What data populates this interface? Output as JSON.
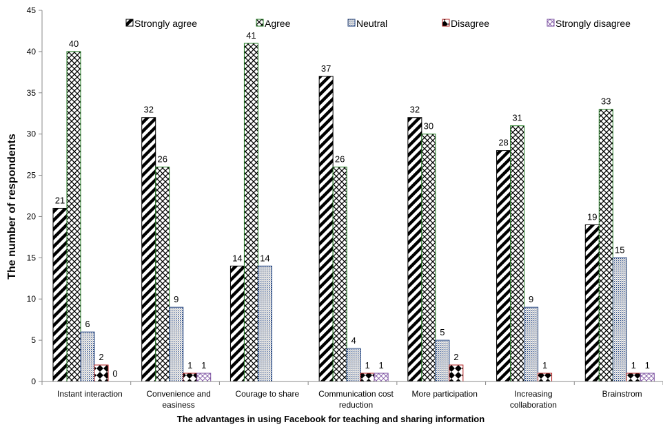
{
  "chart_data": {
    "type": "bar",
    "title": "",
    "xlabel": "The advantages in using Facebook for teaching and sharing information",
    "ylabel": "The number of respondents",
    "ylim": [
      0,
      45
    ],
    "ytick_step": 5,
    "grid": false,
    "legend_position": "top",
    "categories": [
      [
        "Instant interaction"
      ],
      [
        "Convenience and",
        "easiness"
      ],
      [
        "Courage to share"
      ],
      [
        "Communication cost",
        "reduction"
      ],
      [
        "More participation"
      ],
      [
        "Increasing",
        "collaboration"
      ],
      [
        "Brainstrom"
      ]
    ],
    "series": [
      {
        "name": "Strongly agree",
        "pattern": "diag-hatch",
        "color": "#000000",
        "border": "#000000",
        "values": [
          21,
          32,
          14,
          37,
          32,
          28,
          19
        ],
        "labels": [
          "21",
          "32",
          "14",
          "37",
          "32",
          "28",
          "19"
        ]
      },
      {
        "name": "Agree",
        "pattern": "crosshatch",
        "color": "#000000",
        "border": "#1f7a1f",
        "values": [
          40,
          26,
          41,
          26,
          30,
          31,
          33
        ],
        "labels": [
          "40",
          "26",
          "41",
          "26",
          "30",
          "31",
          "33"
        ]
      },
      {
        "name": "Neutral",
        "pattern": "dots",
        "color": "#1f3f7a",
        "border": "#1f3f7a",
        "values": [
          6,
          9,
          14,
          4,
          5,
          9,
          15
        ],
        "labels": [
          "6",
          "9",
          "14",
          "4",
          "5",
          "9",
          "15"
        ]
      },
      {
        "name": "Disagree",
        "pattern": "checker",
        "color": "#000000",
        "border": "#b02020",
        "values": [
          2,
          1,
          0,
          1,
          2,
          1,
          1
        ],
        "labels": [
          "2",
          "1",
          "",
          "1",
          "2",
          "1",
          "1"
        ]
      },
      {
        "name": "Strongly disagree",
        "pattern": "light-crosshatch",
        "color": "#7a4fa0",
        "border": "#7a4fa0",
        "values": [
          0,
          1,
          0,
          1,
          0,
          0,
          1
        ],
        "labels": [
          "0",
          "1",
          "",
          "1",
          "",
          "",
          "1"
        ]
      }
    ]
  }
}
